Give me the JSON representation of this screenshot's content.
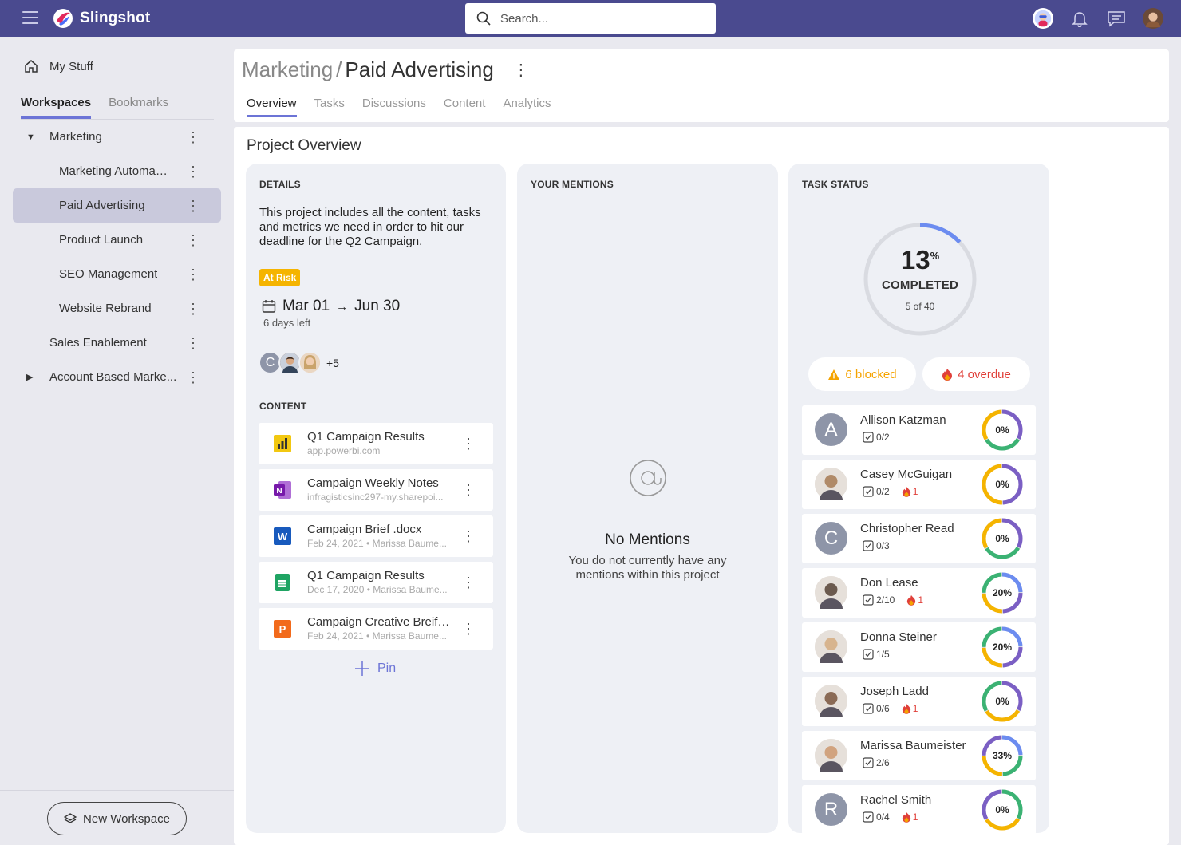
{
  "app": {
    "name": "Slingshot"
  },
  "search": {
    "placeholder": "Search..."
  },
  "sidebar": {
    "my_stuff": "My Stuff",
    "tabs": [
      "Workspaces",
      "Bookmarks"
    ],
    "items": [
      {
        "label": "Marketing",
        "level": 1,
        "caret": "down"
      },
      {
        "label": "Marketing Automati...",
        "level": 2
      },
      {
        "label": "Paid Advertising",
        "level": 2,
        "selected": true
      },
      {
        "label": "Product Launch",
        "level": 2
      },
      {
        "label": "SEO Management",
        "level": 2
      },
      {
        "label": "Website Rebrand",
        "level": 2
      },
      {
        "label": "Sales Enablement",
        "level": 1
      },
      {
        "label": "Account Based Marke...",
        "level": 1,
        "caret": "right"
      }
    ],
    "new_workspace": "New Workspace"
  },
  "header": {
    "crumb_parent": "Marketing",
    "crumb_sep": "/",
    "crumb_current": "Paid Advertising",
    "tabs": [
      "Overview",
      "Tasks",
      "Discussions",
      "Content",
      "Analytics"
    ]
  },
  "overview": {
    "title": "Project Overview",
    "details": {
      "heading": "DETAILS",
      "description": "This project includes all the content, tasks and metrics we need in order to hit our deadline for the Q2 Campaign.",
      "status_badge": "At Risk",
      "start_date": "Mar 01",
      "arrow": "→",
      "end_date": "Jun 30",
      "days_left": "6 days left",
      "avatar_initial": "C",
      "extra_members": "+5"
    },
    "content": {
      "heading": "CONTENT",
      "files": [
        {
          "name": "Q1 Campaign Results",
          "sub": "app.powerbi.com",
          "icon": "powerbi-icon"
        },
        {
          "name": "Campaign Weekly Notes",
          "sub": "infragisticsinc297-my.sharepoi...",
          "icon": "onenote-icon"
        },
        {
          "name": "Campaign Brief .docx",
          "sub": "Feb 24, 2021 • Marissa Baume...",
          "icon": "word-icon"
        },
        {
          "name": "Q1 Campaign Results",
          "sub": "Dec 17, 2020 • Marissa Baume...",
          "icon": "sheets-icon"
        },
        {
          "name": "Campaign Creative Breif ....",
          "sub": "Feb 24, 2021 • Marissa Baume...",
          "icon": "powerpoint-icon"
        }
      ],
      "pin_label": "Pin"
    },
    "mentions": {
      "heading": "YOUR MENTIONS",
      "empty_title": "No Mentions",
      "empty_text": "You do not currently have any mentions within this project"
    },
    "task_status": {
      "heading": "TASK STATUS",
      "percent": "13",
      "percent_sign": "%",
      "completed_label": "COMPLETED",
      "completed_count": "5 of 40",
      "progress": 0.13,
      "blocked": "6 blocked",
      "overdue": "4 overdue",
      "people": [
        {
          "name": "Allison Katzman",
          "tasks": "0/2",
          "overdue": "",
          "pct": "0%",
          "initial": "A"
        },
        {
          "name": "Casey McGuigan",
          "tasks": "0/2",
          "overdue": "1",
          "pct": "0%",
          "initial": ""
        },
        {
          "name": "Christopher Read",
          "tasks": "0/3",
          "overdue": "",
          "pct": "0%",
          "initial": "C"
        },
        {
          "name": "Don Lease",
          "tasks": "2/10",
          "overdue": "1",
          "pct": "20%",
          "initial": ""
        },
        {
          "name": "Donna Steiner",
          "tasks": "1/5",
          "overdue": "",
          "pct": "20%",
          "initial": ""
        },
        {
          "name": "Joseph Ladd",
          "tasks": "0/6",
          "overdue": "1",
          "pct": "0%",
          "initial": ""
        },
        {
          "name": "Marissa Baumeister",
          "tasks": "2/6",
          "overdue": "",
          "pct": "33%",
          "initial": ""
        },
        {
          "name": "Rachel Smith",
          "tasks": "0/4",
          "overdue": "1",
          "pct": "0%",
          "initial": "R"
        }
      ]
    }
  },
  "colors": {
    "topbar": "#4a4a8f",
    "accent": "#6c74d6",
    "at_risk": "#f5b400",
    "blocked": "#f5a300",
    "overdue": "#e0403a"
  }
}
